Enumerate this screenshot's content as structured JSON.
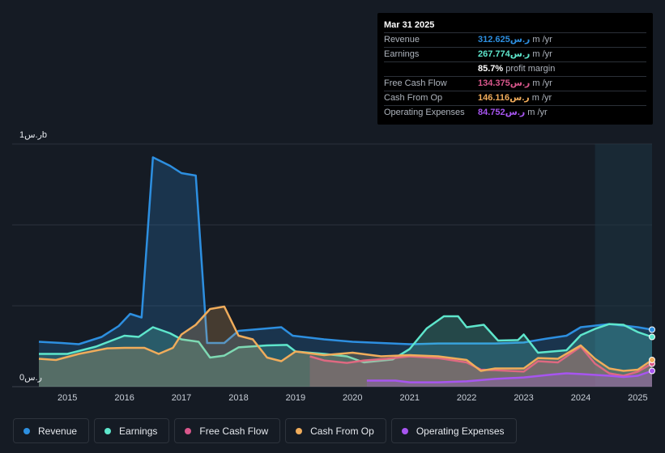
{
  "tooltip": {
    "date": "Mar 31 2025",
    "rows": [
      {
        "label": "Revenue",
        "value": "312.625ر.س",
        "unit_suffix": "m /yr",
        "color": "#2d8fe0"
      },
      {
        "label": "Earnings",
        "value": "267.774ر.س",
        "unit_suffix": "m /yr",
        "color": "#5ee6cc"
      },
      {
        "label": "",
        "value": "85.7%",
        "unit_suffix": "profit margin",
        "color": "#ffffff"
      },
      {
        "label": "Free Cash Flow",
        "value": "134.375ر.س",
        "unit_suffix": "m /yr",
        "color": "#d9578c"
      },
      {
        "label": "Cash From Op",
        "value": "146.116ر.س",
        "unit_suffix": "m /yr",
        "color": "#f0ac5b"
      },
      {
        "label": "Operating Expenses",
        "value": "84.752ر.س",
        "unit_suffix": "m /yr",
        "color": "#a755f0"
      }
    ]
  },
  "legend": [
    {
      "label": "Revenue",
      "color": "#2d8fe0"
    },
    {
      "label": "Earnings",
      "color": "#5ee6cc"
    },
    {
      "label": "Free Cash Flow",
      "color": "#d9578c"
    },
    {
      "label": "Cash From Op",
      "color": "#f0ac5b"
    },
    {
      "label": "Operating Expenses",
      "color": "#a755f0"
    }
  ],
  "chart_data": {
    "type": "area",
    "y_tick_labels": [
      "1ر.سb",
      "0ر.س"
    ],
    "ylim": [
      0,
      1000
    ],
    "x_tick_labels": [
      "2015",
      "2016",
      "2017",
      "2018",
      "2019",
      "2020",
      "2021",
      "2022",
      "2023",
      "2024",
      "2025"
    ],
    "xlim": [
      2014.5,
      2025.25
    ],
    "grid": true,
    "highlight_start": 2024.25,
    "series": [
      {
        "name": "Revenue",
        "color": "#2d8fe0",
        "x": [
          2014.5,
          2014.9,
          2015.2,
          2015.6,
          2015.9,
          2016.1,
          2016.3,
          2016.5,
          2016.8,
          2017.0,
          2017.25,
          2017.45,
          2017.75,
          2018.0,
          2018.4,
          2018.75,
          2018.95,
          2019.5,
          2020.0,
          2020.5,
          2021.0,
          2021.5,
          2022.0,
          2022.5,
          2023.0,
          2023.4,
          2023.75,
          2024.0,
          2024.5,
          2025.0,
          2025.25
        ],
        "y": [
          185,
          180,
          175,
          205,
          250,
          300,
          285,
          945,
          910,
          880,
          870,
          180,
          180,
          230,
          238,
          245,
          210,
          195,
          185,
          180,
          175,
          178,
          178,
          178,
          182,
          198,
          210,
          245,
          258,
          245,
          235
        ]
      },
      {
        "name": "Earnings",
        "color": "#5ee6cc",
        "x": [
          2014.5,
          2015.0,
          2015.5,
          2016.0,
          2016.25,
          2016.5,
          2016.8,
          2017.0,
          2017.3,
          2017.5,
          2017.75,
          2018.0,
          2018.5,
          2018.85,
          2019.0,
          2019.5,
          2019.9,
          2020.2,
          2020.7,
          2021.0,
          2021.3,
          2021.6,
          2021.85,
          2022.0,
          2022.3,
          2022.55,
          2022.9,
          2023.0,
          2023.25,
          2023.75,
          2024.0,
          2024.25,
          2024.5,
          2024.75,
          2025.0,
          2025.25
        ],
        "y": [
          135,
          135,
          165,
          210,
          205,
          245,
          220,
          195,
          185,
          120,
          128,
          162,
          170,
          172,
          145,
          135,
          125,
          100,
          112,
          155,
          240,
          290,
          290,
          245,
          255,
          190,
          192,
          215,
          140,
          150,
          212,
          238,
          258,
          255,
          225,
          205
        ]
      },
      {
        "name": "Free Cash Flow",
        "color": "#d9578c",
        "x": [
          2019.25,
          2019.5,
          2019.9,
          2020.2,
          2020.6,
          2021.0,
          2021.5,
          2022.0,
          2022.25,
          2022.5,
          2023.0,
          2023.25,
          2023.6,
          2024.0,
          2024.25,
          2024.5,
          2024.75,
          2025.0,
          2025.25
        ],
        "y": [
          125,
          108,
          98,
          108,
          115,
          125,
          118,
          100,
          70,
          68,
          62,
          105,
          100,
          165,
          95,
          55,
          45,
          62,
          95
        ]
      },
      {
        "name": "Cash From Op",
        "color": "#f0ac5b",
        "x": [
          2014.5,
          2014.8,
          2015.2,
          2015.7,
          2016.0,
          2016.35,
          2016.6,
          2016.85,
          2017.0,
          2017.25,
          2017.5,
          2017.75,
          2018.0,
          2018.25,
          2018.5,
          2018.75,
          2019.0,
          2019.5,
          2020.0,
          2020.5,
          2021.0,
          2021.5,
          2022.0,
          2022.25,
          2022.5,
          2023.0,
          2023.25,
          2023.6,
          2024.0,
          2024.25,
          2024.5,
          2024.75,
          2025.0,
          2025.25
        ],
        "y": [
          115,
          110,
          135,
          158,
          160,
          160,
          135,
          160,
          215,
          255,
          320,
          330,
          210,
          195,
          120,
          105,
          145,
          130,
          140,
          125,
          130,
          125,
          110,
          65,
          75,
          75,
          118,
          115,
          170,
          115,
          75,
          65,
          70,
          110
        ]
      },
      {
        "name": "Operating Expenses",
        "color": "#a755f0",
        "x": [
          2020.25,
          2020.75,
          2021.0,
          2021.5,
          2022.0,
          2022.5,
          2023.0,
          2023.5,
          2023.75,
          2024.0,
          2024.5,
          2024.75,
          2025.0,
          2025.25
        ],
        "y": [
          25,
          25,
          18,
          18,
          22,
          32,
          38,
          50,
          55,
          52,
          45,
          40,
          45,
          65
        ]
      }
    ]
  }
}
